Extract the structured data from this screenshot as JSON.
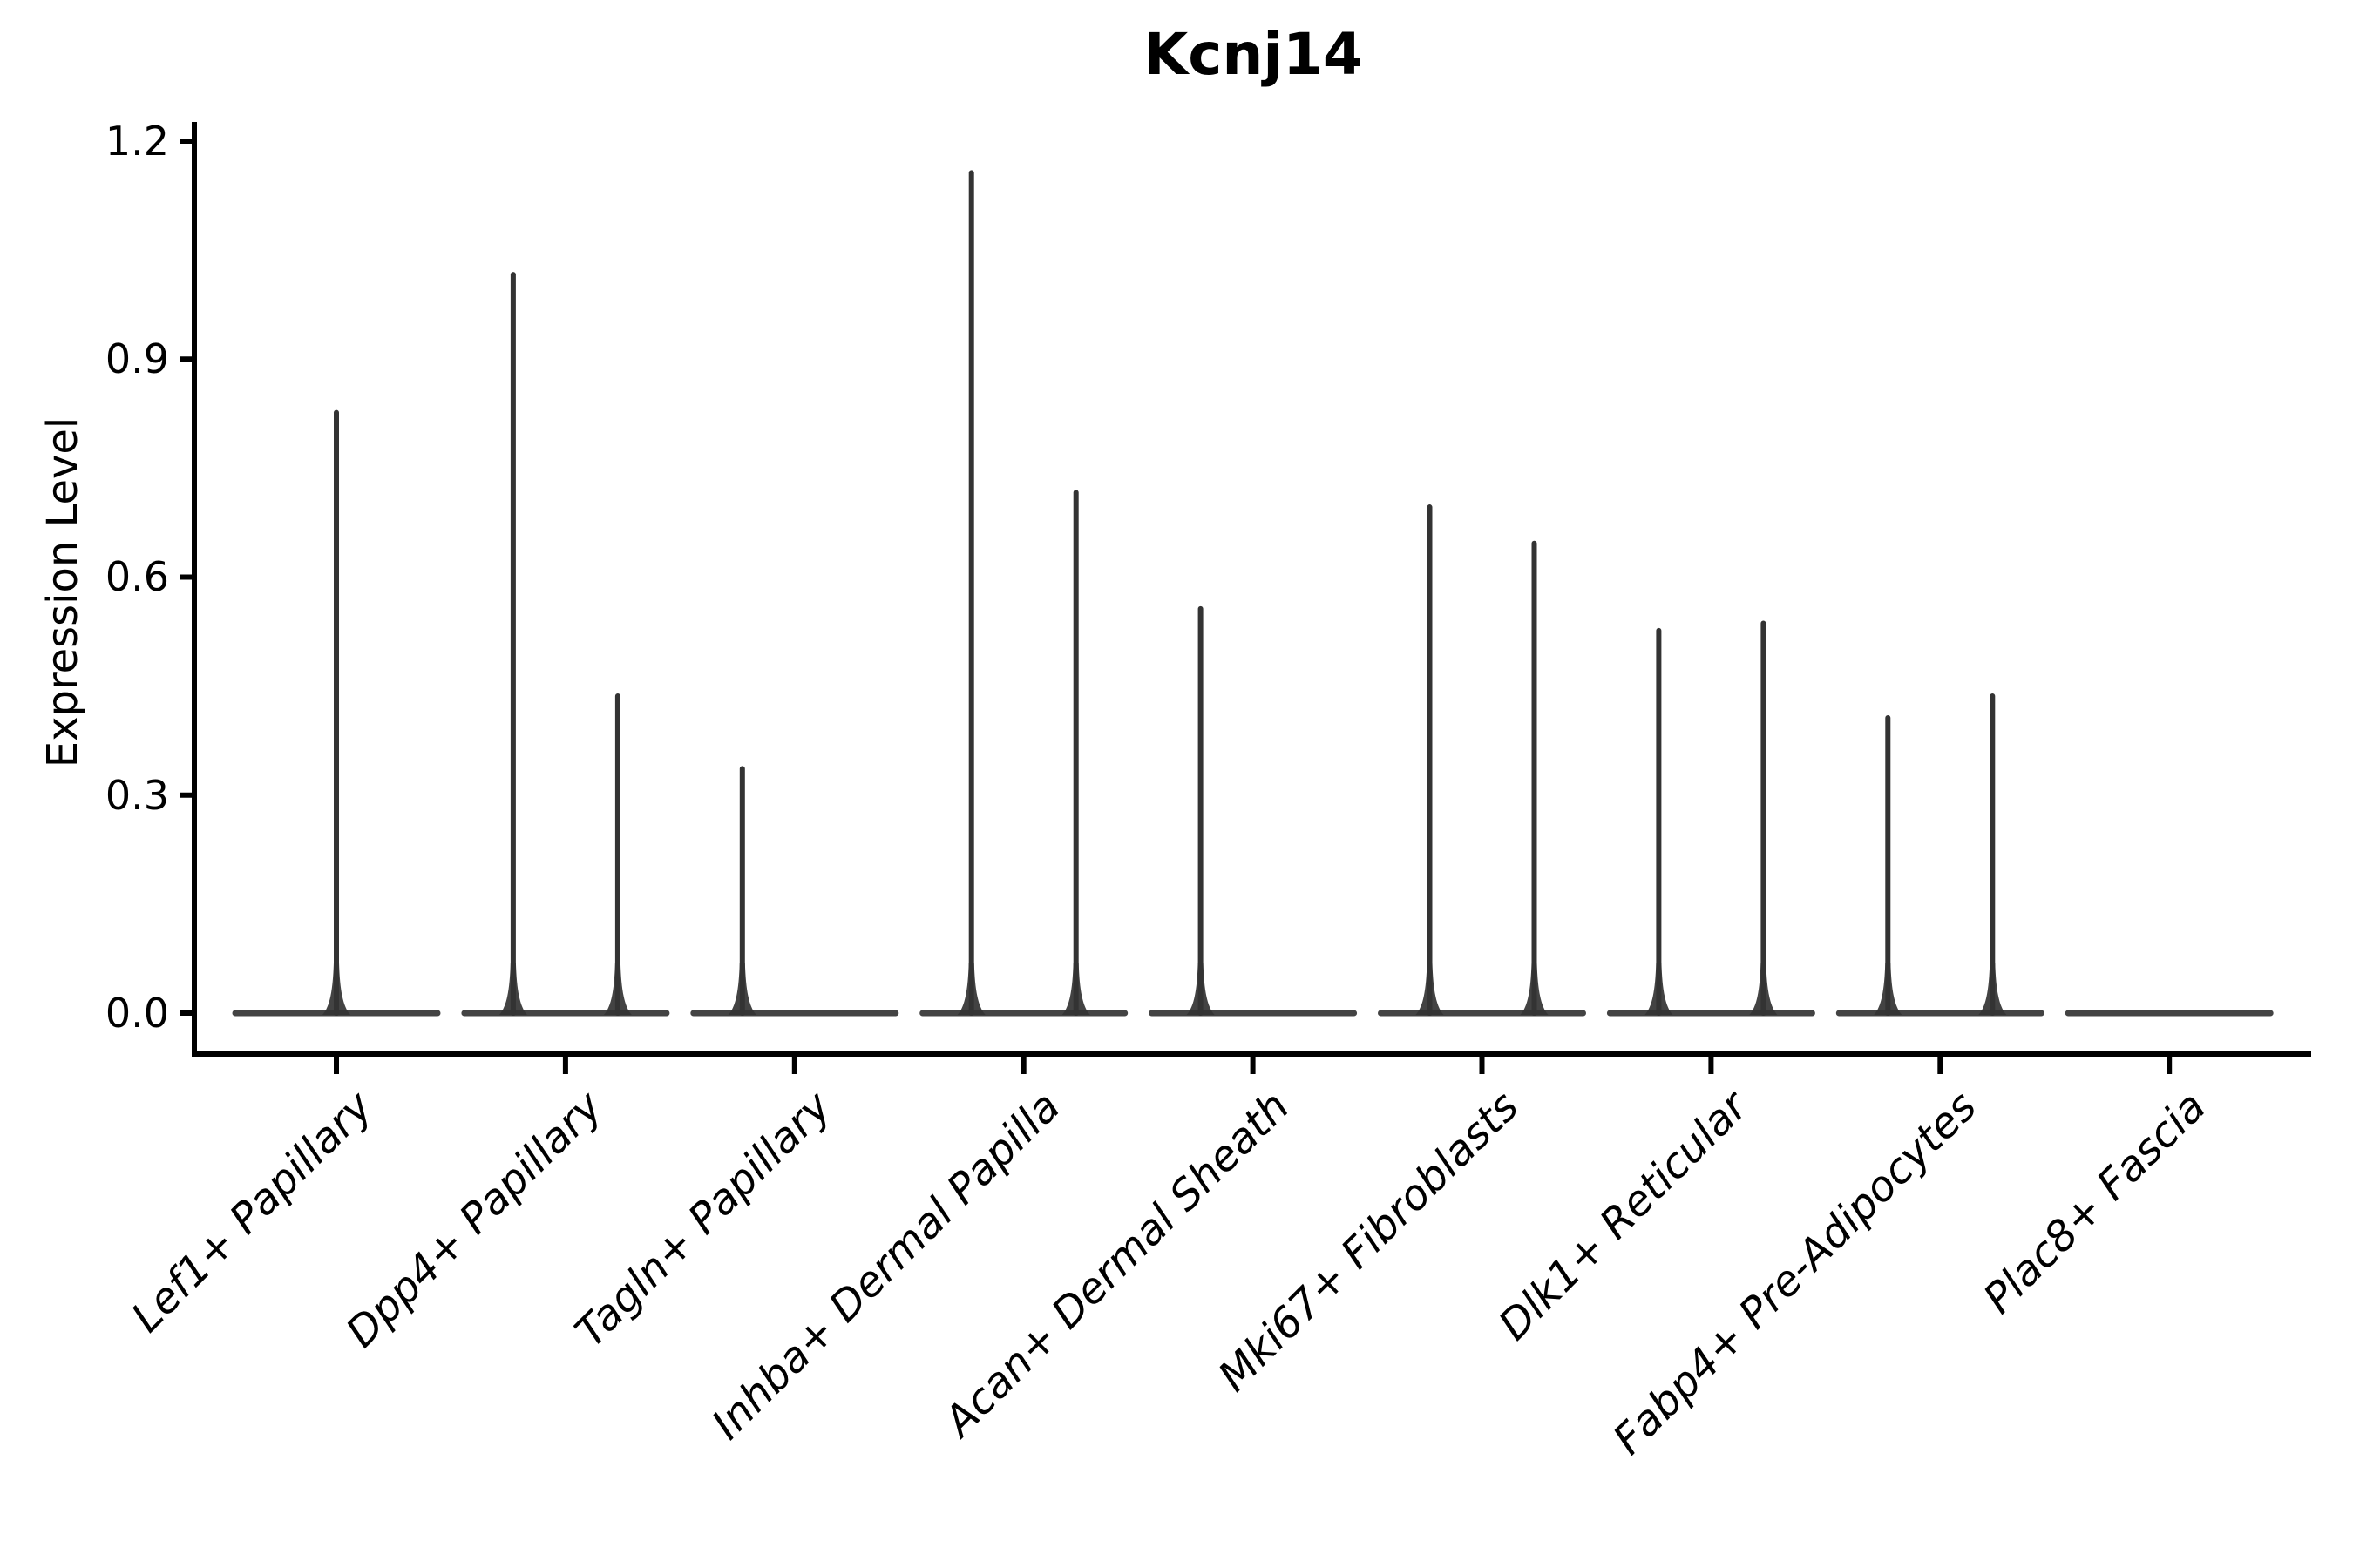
{
  "title": "Kcnj14",
  "y_axis": {
    "label": "Expression Level",
    "tick_labels": [
      "0.0",
      "0.3",
      "0.6",
      "0.9",
      "1.2"
    ]
  },
  "chart_data": {
    "type": "violin",
    "title": "Kcnj14",
    "xlabel": "",
    "ylabel": "Expression Level",
    "ylim": [
      -0.06,
      1.22
    ],
    "yticks": [
      0,
      0.3,
      0.6,
      0.9,
      1.2
    ],
    "ytick_labels": [
      "0.0",
      "0.3",
      "0.6",
      "0.9",
      "1.2"
    ],
    "grid": false,
    "legend_position": "none",
    "categories": [
      "Lef1+ Papillary",
      "Dpp4+ Papillary",
      "Tagln+ Papillary",
      "Inhba+ Dermal Papilla",
      "Acan+ Dermal Sheath",
      "Mki67+ Fibroblasts",
      "Dlk1+ Reticular",
      "Fabp4+ Pre-Adipocytes",
      "Plac8+ Fascia"
    ],
    "series": [
      {
        "category": "Lef1+ Papillary",
        "spikes": [
          {
            "position": "center",
            "max": 0.83
          }
        ]
      },
      {
        "category": "Dpp4+ Papillary",
        "spikes": [
          {
            "position": "left",
            "max": 1.02
          },
          {
            "position": "right",
            "max": 0.44
          }
        ]
      },
      {
        "category": "Tagln+ Papillary",
        "spikes": [
          {
            "position": "left",
            "max": 0.34
          }
        ]
      },
      {
        "category": "Inhba+ Dermal Papilla",
        "spikes": [
          {
            "position": "left",
            "max": 1.16
          },
          {
            "position": "right",
            "max": 0.72
          }
        ]
      },
      {
        "category": "Acan+ Dermal Sheath",
        "spikes": [
          {
            "position": "left",
            "max": 0.56
          }
        ]
      },
      {
        "category": "Mki67+ Fibroblasts",
        "spikes": [
          {
            "position": "left",
            "max": 0.7
          },
          {
            "position": "right",
            "max": 0.65
          }
        ]
      },
      {
        "category": "Dlk1+ Reticular",
        "spikes": [
          {
            "position": "left",
            "max": 0.53
          },
          {
            "position": "right",
            "max": 0.54
          }
        ]
      },
      {
        "category": "Fabp4+ Pre-Adipocytes",
        "spikes": [
          {
            "position": "left",
            "max": 0.41
          },
          {
            "position": "right",
            "max": 0.44
          }
        ]
      },
      {
        "category": "Plac8+ Fascia",
        "spikes": []
      }
    ],
    "colors": {
      "violin": "#333333",
      "axis": "#000000",
      "text": "#000000",
      "background": "#ffffff"
    }
  }
}
